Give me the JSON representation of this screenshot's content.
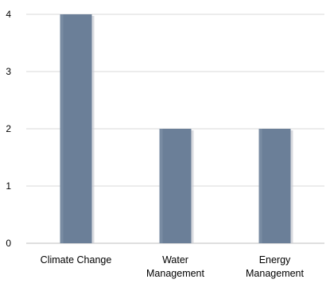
{
  "chart_data": {
    "type": "bar",
    "categories": [
      [
        "Climate Change"
      ],
      [
        "Water",
        "Management"
      ],
      [
        "Energy",
        "Management"
      ]
    ],
    "values": [
      4,
      2,
      2
    ],
    "yticks": [
      "0",
      "1",
      "2",
      "3",
      "4"
    ],
    "ylim": [
      0,
      4
    ],
    "grid": true,
    "legend": "none"
  },
  "colors": {
    "bar": "#6b7f98",
    "bar_edge": "#5a6d86",
    "shadow": "#c7cbd1",
    "grid": "#d9d9d9",
    "axis": "#bfbfbf"
  }
}
